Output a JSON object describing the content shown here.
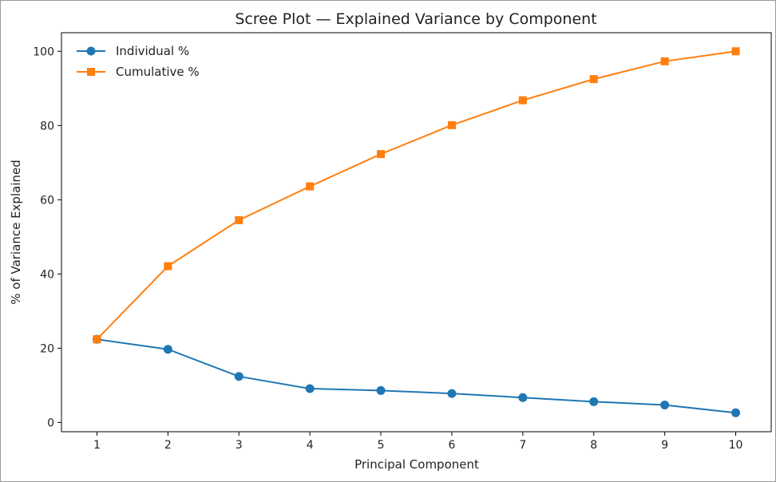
{
  "chart_data": {
    "type": "line",
    "title": "Scree Plot — Explained Variance by Component",
    "xlabel": "Principal Component",
    "ylabel": "% of Variance Explained",
    "x": [
      1,
      2,
      3,
      4,
      5,
      6,
      7,
      8,
      9,
      10
    ],
    "xlim": [
      0.5,
      10.5
    ],
    "ylim": [
      -2.5,
      105
    ],
    "xticks": [
      "1",
      "2",
      "3",
      "4",
      "5",
      "6",
      "7",
      "8",
      "9",
      "10"
    ],
    "yticks": [
      "0",
      "20",
      "40",
      "60",
      "80",
      "100"
    ],
    "grid": false,
    "legend_position": "top-left",
    "series": [
      {
        "name": "Individual %",
        "marker": "circle",
        "color": "#1f77b4",
        "values": [
          22.4,
          19.7,
          12.4,
          9.1,
          8.6,
          7.8,
          6.7,
          5.6,
          4.7,
          2.6
        ]
      },
      {
        "name": "Cumulative %",
        "marker": "square",
        "color": "#ff7f0e",
        "values": [
          22.4,
          42.1,
          54.5,
          63.6,
          72.3,
          80.1,
          86.8,
          92.5,
          97.3,
          100.0
        ]
      }
    ]
  }
}
